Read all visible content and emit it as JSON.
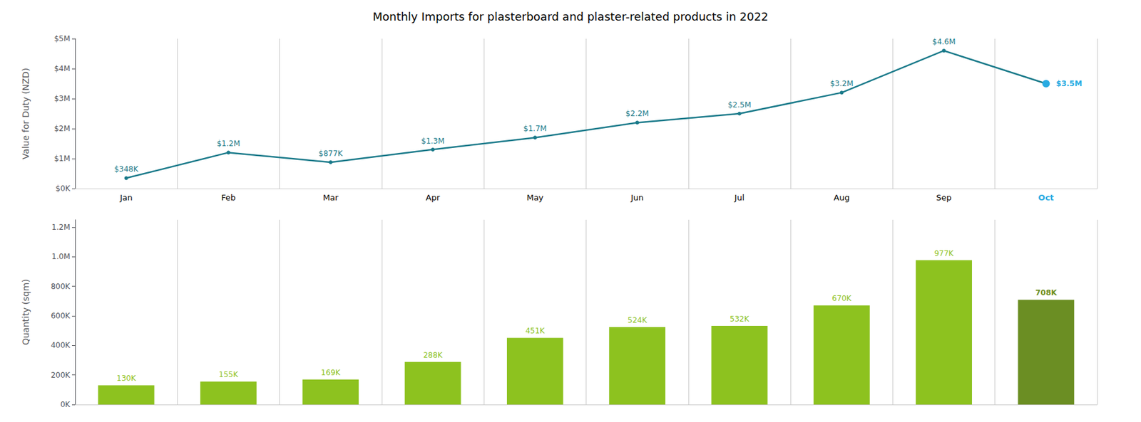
{
  "chart_data": [
    {
      "type": "line",
      "title": "Monthly Imports for plasterboard and plaster-related products in 2022",
      "categories": [
        "Jan",
        "Feb",
        "Mar",
        "Apr",
        "May",
        "Jun",
        "Jul",
        "Aug",
        "Sep",
        "Oct"
      ],
      "values": [
        348000,
        1200000,
        877000,
        1300000,
        1700000,
        2200000,
        2500000,
        3200000,
        4600000,
        3500000
      ],
      "value_labels": [
        "$348K",
        "$1.2M",
        "$877K",
        "$1.3M",
        "$1.7M",
        "$2.2M",
        "$2.5M",
        "$3.2M",
        "$4.6M",
        "$3.5M"
      ],
      "data_labels": true,
      "color": "#1a7a8a",
      "colors": [
        "#1a7a8a",
        "#1a7a8a",
        "#1a7a8a",
        "#1a7a8a",
        "#1a7a8a",
        "#1a7a8a",
        "#1a7a8a",
        "#1a7a8a",
        "#1a7a8a",
        "#29abe2"
      ],
      "ylabel": "Value for Duty (NZD)",
      "ylim": [
        0,
        5000000
      ],
      "yticks": [
        {
          "value": 0,
          "label": "$0K"
        },
        {
          "value": 1000000,
          "label": "$1M"
        },
        {
          "value": 2000000,
          "label": "$2M"
        },
        {
          "value": 3000000,
          "label": "$3M"
        },
        {
          "value": 4000000,
          "label": "$4M"
        },
        {
          "value": 5000000,
          "label": "$5M"
        }
      ],
      "grid": true
    },
    {
      "type": "bar",
      "categories": [
        "Jan",
        "Feb",
        "Mar",
        "Apr",
        "May",
        "Jun",
        "Jul",
        "Aug",
        "Sep",
        "Oct"
      ],
      "values": [
        130000,
        155000,
        169000,
        288000,
        451000,
        524000,
        532000,
        670000,
        977000,
        708000
      ],
      "value_labels": [
        "130K",
        "155K",
        "169K",
        "288K",
        "451K",
        "524K",
        "532K",
        "670K",
        "977K",
        "708K"
      ],
      "data_labels": true,
      "colors": [
        "#8dc21f",
        "#8dc21f",
        "#8dc21f",
        "#8dc21f",
        "#8dc21f",
        "#8dc21f",
        "#8dc21f",
        "#8dc21f",
        "#8dc21f",
        "#6b8e23"
      ],
      "ylabel": "Quantity (sqm)",
      "ylim": [
        0,
        1250000
      ],
      "yticks": [
        {
          "value": 0,
          "label": "0K"
        },
        {
          "value": 200000,
          "label": "200K"
        },
        {
          "value": 400000,
          "label": "400K"
        },
        {
          "value": 600000,
          "label": "600K"
        },
        {
          "value": 800000,
          "label": "800K"
        },
        {
          "value": 1000000,
          "label": "1.0M"
        },
        {
          "value": 1200000,
          "label": "1.2M"
        }
      ],
      "tick_labels": "y",
      "grid": true
    }
  ]
}
